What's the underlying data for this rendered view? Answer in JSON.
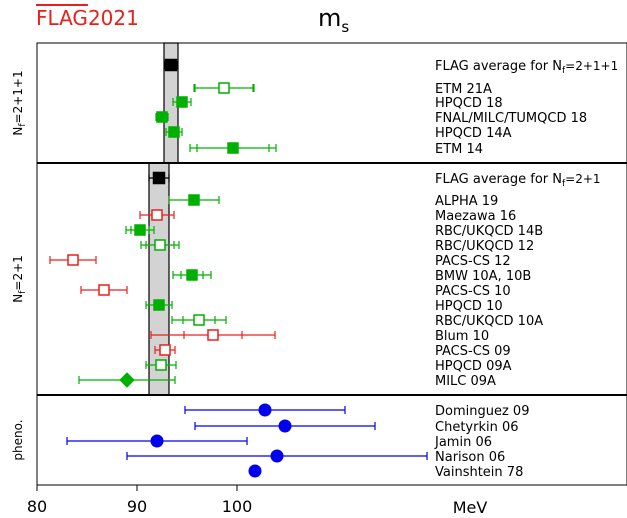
{
  "header": {
    "logo_text": "FLAG",
    "logo_year": "2021",
    "title_main": "m",
    "title_sub": "s"
  },
  "chart_data": {
    "type": "scatter",
    "xlabel": "MeV",
    "xlim": [
      80,
      120
    ],
    "xticks": [
      80,
      90,
      100
    ],
    "grid": false,
    "colors": {
      "average": "#000000",
      "green": "#00b000",
      "red": "#e8201c",
      "blue": "#0000ee",
      "band": "#d3d3d3"
    },
    "panels": [
      {
        "label": "N_f = 2+1+1",
        "band": [
          92.7,
          94.1
        ],
        "entries": [
          {
            "name": "FLAG average for N_f = 2+1+1",
            "value": 93.4,
            "err_in": 0.6,
            "err_out": 0.6,
            "marker": "square",
            "color": "average",
            "filled": true
          },
          {
            "name": "ETM 21A",
            "value": 98.7,
            "err_in": 2.9,
            "err_out": 3.0,
            "marker": "square",
            "color": "green",
            "filled": false
          },
          {
            "name": "HPQCD 18",
            "value": 94.5,
            "err_in": 0.9,
            "err_out": 0.9,
            "marker": "square",
            "color": "green",
            "filled": true
          },
          {
            "name": "FNAL/MILC/TUMQCD 18",
            "value": 92.5,
            "err_in": 0.6,
            "err_out": 0.6,
            "marker": "square",
            "color": "green",
            "filled": true
          },
          {
            "name": "HPQCD 14A",
            "value": 93.7,
            "err_in": 0.8,
            "err_out": 0.8,
            "marker": "square",
            "color": "green",
            "filled": true
          },
          {
            "name": "ETM 14",
            "value": 99.6,
            "err_in": 3.6,
            "err_out": 4.3,
            "marker": "square",
            "color": "green",
            "filled": true
          }
        ]
      },
      {
        "label": "N_f = 2+1",
        "band": [
          91.2,
          93.2
        ],
        "entries": [
          {
            "name": "FLAG average for N_f = 2+1",
            "value": 92.2,
            "err_in": 1.0,
            "err_out": 1.0,
            "marker": "square",
            "color": "average",
            "filled": true
          },
          {
            "name": "ALPHA 19",
            "value": 95.7,
            "err_in": 2.5,
            "err_out": 2.5,
            "marker": "square",
            "color": "green",
            "filled": true
          },
          {
            "name": "Maezawa 16",
            "value": 92.0,
            "err_in": 1.7,
            "err_out": 1.7,
            "marker": "square",
            "color": "red",
            "filled": false
          },
          {
            "name": "RBC/UKQCD 14B",
            "value": 90.3,
            "err_in": 0.9,
            "err_out": 1.4,
            "marker": "square",
            "color": "green",
            "filled": true
          },
          {
            "name": "RBC/UKQCD 12",
            "value": 92.3,
            "err_in": 1.4,
            "err_out": 1.9,
            "marker": "square",
            "color": "green",
            "filled": false
          },
          {
            "name": "PACS-CS 12",
            "value": 83.6,
            "err_in": 2.3,
            "err_out": 2.3,
            "marker": "square",
            "color": "red",
            "filled": false
          },
          {
            "name": "BMW 10A, 10B",
            "value": 95.5,
            "err_in": 1.1,
            "err_out": 1.9,
            "marker": "square",
            "color": "green",
            "filled": true
          },
          {
            "name": "PACS-CS 10",
            "value": 86.7,
            "err_in": 2.3,
            "err_out": 2.3,
            "marker": "square",
            "color": "red",
            "filled": false
          },
          {
            "name": "HPQCD 10",
            "value": 92.2,
            "err_in": 1.3,
            "err_out": 1.3,
            "marker": "square",
            "color": "green",
            "filled": true
          },
          {
            "name": "RBC/UKQCD 10A",
            "value": 96.2,
            "err_in": 1.6,
            "err_out": 2.7,
            "marker": "square",
            "color": "green",
            "filled": false
          },
          {
            "name": "Blum 10",
            "value": 97.6,
            "err_in": 2.9,
            "err_out": 6.2,
            "marker": "square",
            "color": "red",
            "filled": false
          },
          {
            "name": "PACS-CS 09",
            "value": 92.8,
            "err_in": 1.0,
            "err_out": 1.0,
            "marker": "square",
            "color": "red",
            "filled": false
          },
          {
            "name": "HPQCD 09A",
            "value": 92.4,
            "err_in": 1.5,
            "err_out": 1.5,
            "marker": "square",
            "color": "green",
            "filled": false
          },
          {
            "name": "MILC 09A",
            "value": 89.0,
            "err_in": 4.8,
            "err_out": 4.8,
            "marker": "diamond",
            "color": "green",
            "filled": true
          }
        ]
      },
      {
        "label": "pheno.",
        "band": null,
        "entries": [
          {
            "name": "Dominguez 09",
            "value": 102.8,
            "err_in": 8.0,
            "err_out": 8.0,
            "marker": "circle",
            "color": "blue",
            "filled": true
          },
          {
            "name": "Chetyrkin 06",
            "value": 104.8,
            "err_in": 9.0,
            "err_out": 9.0,
            "marker": "circle",
            "color": "blue",
            "filled": true
          },
          {
            "name": "Jamin 06",
            "value": 92.0,
            "err_in": 9.0,
            "err_out": 9.0,
            "marker": "circle",
            "color": "blue",
            "filled": true
          },
          {
            "name": "Narison 06",
            "value": 104.0,
            "err_in": 15.0,
            "err_out": 15.0,
            "marker": "circle",
            "color": "blue",
            "filled": true
          },
          {
            "name": "Vainshtein 78",
            "value": 101.8,
            "err_in": 0,
            "err_out": 0,
            "marker": "circle",
            "color": "blue",
            "filled": true
          }
        ]
      }
    ]
  }
}
